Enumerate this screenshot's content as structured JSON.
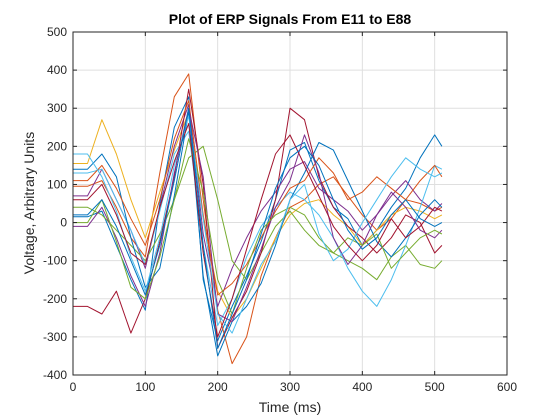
{
  "chart_data": {
    "type": "line",
    "title": "Plot of ERP Signals From E11 to E88",
    "xlabel": "Time (ms)",
    "ylabel": "Voltage, Arbitrary Units",
    "xlim": [
      0,
      600
    ],
    "ylim": [
      -400,
      500
    ],
    "xticks": [
      0,
      100,
      200,
      300,
      400,
      500,
      600
    ],
    "yticks": [
      -400,
      -300,
      -200,
      -100,
      0,
      100,
      200,
      300,
      400,
      500
    ],
    "xtick_labels": [
      "0",
      "100",
      "200",
      "300",
      "400",
      "500",
      "600"
    ],
    "ytick_labels": [
      "-400",
      "-300",
      "-200",
      "-100",
      "0",
      "100",
      "200",
      "300",
      "400",
      "500"
    ],
    "grid": true,
    "legend": false,
    "series_colors": [
      "#0072BD",
      "#D95319",
      "#EDB120",
      "#7E2F8E",
      "#77AC30",
      "#4DBEEE",
      "#A2142F",
      "#0072BD",
      "#D95319",
      "#7E2F8E",
      "#77AC30",
      "#4DBEEE",
      "#A2142F",
      "#0072BD"
    ],
    "series": [
      {
        "x": [
          0,
          20,
          40,
          60,
          80,
          100,
          120,
          140,
          160,
          180,
          200,
          220,
          240,
          260,
          280,
          300,
          320,
          340,
          360,
          380,
          400,
          420,
          440,
          460,
          480,
          500,
          510
        ],
        "values": [
          15,
          15,
          30,
          -60,
          -150,
          -230,
          50,
          250,
          330,
          -150,
          -310,
          -220,
          -140,
          -50,
          60,
          190,
          210,
          110,
          40,
          10,
          -60,
          -20,
          40,
          90,
          170,
          230,
          200
        ]
      },
      {
        "x": [
          0,
          20,
          40,
          60,
          80,
          100,
          120,
          140,
          160,
          180,
          200,
          220,
          240,
          260,
          280,
          300,
          320,
          340,
          360,
          380,
          400,
          420,
          440,
          460,
          480,
          500,
          510
        ],
        "values": [
          95,
          95,
          110,
          40,
          -40,
          -90,
          130,
          330,
          390,
          60,
          -230,
          -370,
          -300,
          -140,
          -40,
          40,
          60,
          100,
          120,
          70,
          20,
          -20,
          10,
          60,
          50,
          30,
          40
        ]
      },
      {
        "x": [
          0,
          20,
          40,
          60,
          80,
          100,
          120,
          140,
          160,
          180,
          200,
          220,
          240,
          260,
          280,
          300,
          320,
          340,
          360,
          380,
          400,
          420,
          440,
          460,
          480,
          500,
          510
        ],
        "values": [
          155,
          155,
          270,
          180,
          60,
          -40,
          80,
          190,
          290,
          10,
          -180,
          -250,
          -200,
          -120,
          -40,
          20,
          50,
          60,
          20,
          -10,
          -60,
          -20,
          20,
          40,
          30,
          10,
          20
        ]
      },
      {
        "x": [
          0,
          20,
          40,
          60,
          80,
          100,
          120,
          140,
          160,
          180,
          200,
          220,
          240,
          260,
          280,
          300,
          320,
          340,
          360,
          380,
          400,
          420,
          440,
          460,
          480,
          500,
          510
        ],
        "values": [
          70,
          70,
          140,
          60,
          -20,
          -120,
          40,
          200,
          310,
          -30,
          -220,
          -120,
          -40,
          30,
          80,
          140,
          160,
          90,
          60,
          30,
          -20,
          20,
          70,
          110,
          60,
          30,
          50
        ]
      },
      {
        "x": [
          0,
          20,
          40,
          60,
          80,
          100,
          120,
          140,
          160,
          180,
          200,
          220,
          240,
          260,
          280,
          300,
          320,
          340,
          360,
          380,
          400,
          420,
          440,
          460,
          480,
          500,
          510
        ],
        "values": [
          40,
          40,
          20,
          -20,
          -60,
          -100,
          -30,
          60,
          170,
          200,
          60,
          -100,
          -150,
          -80,
          -10,
          30,
          -20,
          -60,
          -80,
          -100,
          -120,
          -150,
          -90,
          -60,
          -110,
          -120,
          -100
        ]
      },
      {
        "x": [
          0,
          20,
          40,
          60,
          80,
          100,
          120,
          140,
          160,
          180,
          200,
          220,
          240,
          260,
          280,
          300,
          320,
          340,
          360,
          380,
          400,
          420,
          440,
          460,
          480,
          500,
          510
        ],
        "values": [
          130,
          130,
          140,
          60,
          -20,
          -110,
          30,
          180,
          240,
          -60,
          -270,
          -200,
          -90,
          -10,
          40,
          80,
          60,
          20,
          -40,
          -120,
          -180,
          -220,
          -150,
          -60,
          40,
          150,
          140
        ]
      },
      {
        "x": [
          0,
          20,
          40,
          60,
          80,
          100,
          120,
          140,
          160,
          180,
          200,
          220,
          240,
          260,
          280,
          300,
          320,
          340,
          360,
          380,
          400,
          420,
          440,
          460,
          480,
          500,
          510
        ],
        "values": [
          -220,
          -220,
          -240,
          -180,
          -290,
          -200,
          -50,
          120,
          350,
          100,
          -330,
          -250,
          -180,
          -80,
          60,
          300,
          270,
          120,
          40,
          -10,
          -40,
          -80,
          -40,
          20,
          0,
          -80,
          -60
        ]
      },
      {
        "x": [
          0,
          20,
          40,
          60,
          80,
          100,
          120,
          140,
          160,
          180,
          200,
          220,
          240,
          260,
          280,
          300,
          320,
          340,
          360,
          380,
          400,
          420,
          440,
          460,
          480,
          500,
          510
        ],
        "values": [
          140,
          140,
          180,
          120,
          -40,
          -170,
          -120,
          70,
          290,
          -140,
          -350,
          -260,
          -220,
          -160,
          -60,
          60,
          130,
          210,
          190,
          110,
          30,
          -50,
          -90,
          -40,
          20,
          60,
          40
        ]
      },
      {
        "x": [
          0,
          20,
          40,
          60,
          80,
          100,
          120,
          140,
          160,
          180,
          200,
          220,
          240,
          260,
          280,
          300,
          320,
          340,
          360,
          380,
          400,
          420,
          440,
          460,
          480,
          500,
          510
        ],
        "values": [
          110,
          110,
          150,
          90,
          10,
          -60,
          60,
          220,
          320,
          20,
          -190,
          -160,
          -110,
          -40,
          30,
          90,
          110,
          170,
          130,
          60,
          80,
          120,
          90,
          60,
          110,
          150,
          120
        ]
      },
      {
        "x": [
          0,
          20,
          40,
          60,
          80,
          100,
          120,
          140,
          160,
          180,
          200,
          220,
          240,
          260,
          280,
          300,
          320,
          340,
          360,
          380,
          400,
          420,
          440,
          460,
          480,
          500,
          510
        ],
        "values": [
          -10,
          -10,
          40,
          -40,
          -140,
          -220,
          -80,
          130,
          300,
          120,
          -240,
          -260,
          -170,
          -70,
          40,
          110,
          230,
          130,
          -40,
          -110,
          -60,
          20,
          80,
          40,
          -20,
          -40,
          -20
        ]
      },
      {
        "x": [
          0,
          20,
          40,
          60,
          80,
          100,
          120,
          140,
          160,
          180,
          200,
          220,
          240,
          260,
          280,
          300,
          320,
          340,
          360,
          380,
          400,
          420,
          440,
          460,
          480,
          500,
          510
        ],
        "values": [
          0,
          0,
          60,
          -50,
          -170,
          -200,
          -90,
          60,
          220,
          80,
          -150,
          -240,
          -120,
          -20,
          20,
          40,
          20,
          -40,
          -80,
          -40,
          -60,
          -30,
          -120,
          -80,
          -40,
          -20,
          -30
        ]
      },
      {
        "x": [
          0,
          20,
          40,
          60,
          80,
          100,
          120,
          140,
          160,
          180,
          200,
          220,
          240,
          260,
          280,
          300,
          320,
          340,
          360,
          380,
          400,
          420,
          440,
          460,
          480,
          500,
          510
        ],
        "values": [
          180,
          180,
          120,
          30,
          -90,
          -180,
          -40,
          150,
          280,
          10,
          -240,
          -290,
          -200,
          -110,
          -50,
          60,
          100,
          -30,
          -100,
          -70,
          0,
          60,
          120,
          170,
          140,
          120,
          130
        ]
      },
      {
        "x": [
          0,
          20,
          40,
          60,
          80,
          100,
          120,
          140,
          160,
          180,
          200,
          220,
          240,
          260,
          280,
          300,
          320,
          340,
          360,
          380,
          400,
          420,
          440,
          460,
          480,
          500,
          510
        ],
        "values": [
          60,
          60,
          100,
          20,
          -80,
          -110,
          40,
          160,
          260,
          -80,
          -300,
          -200,
          -70,
          60,
          180,
          230,
          150,
          70,
          -10,
          -60,
          -100,
          -60,
          10,
          -40,
          -10,
          40,
          30
        ]
      },
      {
        "x": [
          0,
          20,
          40,
          60,
          80,
          100,
          120,
          140,
          160,
          180,
          200,
          220,
          240,
          260,
          280,
          300,
          320,
          340,
          360,
          380,
          400,
          420,
          440,
          460,
          480,
          500,
          510
        ],
        "values": [
          20,
          20,
          60,
          -10,
          -100,
          -190,
          -60,
          110,
          300,
          -60,
          -330,
          -240,
          -150,
          -30,
          90,
          170,
          200,
          150,
          60,
          -20,
          -70,
          -40,
          20,
          60,
          10,
          -10,
          0
        ]
      }
    ]
  }
}
